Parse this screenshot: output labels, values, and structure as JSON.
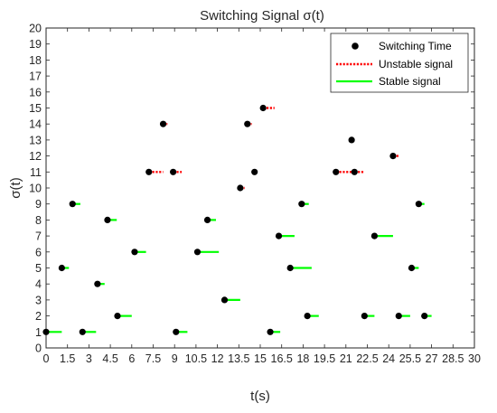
{
  "chart_data": {
    "type": "scatter",
    "title": "Switching Signal σ(t)",
    "xlabel": "t(s)",
    "ylabel": "σ(t)",
    "xlim": [
      0,
      30
    ],
    "ylim": [
      0,
      20
    ],
    "xticks": [
      "0",
      "1.5",
      "3",
      "4.5",
      "6",
      "7.5",
      "9",
      "10.5",
      "12",
      "13.5",
      "15",
      "16.5",
      "18",
      "19.5",
      "21",
      "22.5",
      "24",
      "25.5",
      "27",
      "28.5",
      "30"
    ],
    "yticks": [
      "0",
      "1",
      "2",
      "3",
      "4",
      "5",
      "6",
      "7",
      "8",
      "9",
      "10",
      "11",
      "12",
      "13",
      "14",
      "15",
      "16",
      "17",
      "18",
      "19",
      "20"
    ],
    "grid": false,
    "legend_position": "top-right",
    "colors": {
      "switching": "#000000",
      "unstable": "#ff0000",
      "stable": "#00ff00"
    },
    "legend": [
      {
        "name": "Switching Time",
        "style": "marker"
      },
      {
        "name": "Unstable signal",
        "style": "dotted"
      },
      {
        "name": "Stable signal",
        "style": "solid"
      }
    ],
    "series": [
      {
        "name": "Switching Time",
        "points": [
          [
            0,
            1
          ],
          [
            1.1,
            5
          ],
          [
            1.85,
            9
          ],
          [
            2.55,
            1
          ],
          [
            3.6,
            4
          ],
          [
            4.3,
            8
          ],
          [
            5,
            2
          ],
          [
            6.2,
            6
          ],
          [
            7.2,
            11
          ],
          [
            8.2,
            14
          ],
          [
            8.9,
            11
          ],
          [
            9.1,
            1
          ],
          [
            10.6,
            6
          ],
          [
            11.3,
            8
          ],
          [
            12.5,
            3
          ],
          [
            13.6,
            10
          ],
          [
            14.1,
            14
          ],
          [
            14.6,
            11
          ],
          [
            15.2,
            15
          ],
          [
            15.7,
            1
          ],
          [
            16.3,
            7
          ],
          [
            17.1,
            5
          ],
          [
            17.9,
            9
          ],
          [
            18.3,
            2
          ],
          [
            20.3,
            11
          ],
          [
            21.4,
            13
          ],
          [
            21.6,
            11
          ],
          [
            22.3,
            2
          ],
          [
            23,
            7
          ],
          [
            24.3,
            12
          ],
          [
            24.7,
            2
          ],
          [
            25.6,
            5
          ],
          [
            26.1,
            9
          ],
          [
            26.5,
            2
          ]
        ]
      },
      {
        "name": "Unstable signal",
        "segments": [
          [
            7.2,
            8.2,
            11
          ],
          [
            8.2,
            8.5,
            14
          ],
          [
            8.9,
            9.5,
            11
          ],
          [
            13.6,
            13.9,
            10
          ],
          [
            14.1,
            14.4,
            14
          ],
          [
            14.6,
            14.8,
            11
          ],
          [
            15.2,
            16,
            15
          ],
          [
            20.3,
            21.6,
            11
          ],
          [
            21.4,
            21.5,
            13
          ],
          [
            21.6,
            22.3,
            11
          ],
          [
            24.3,
            24.7,
            12
          ]
        ]
      },
      {
        "name": "Stable signal",
        "segments": [
          [
            0,
            1.1,
            1
          ],
          [
            1.1,
            1.6,
            5
          ],
          [
            1.85,
            2.4,
            9
          ],
          [
            2.55,
            3.5,
            1
          ],
          [
            3.6,
            4.1,
            4
          ],
          [
            4.3,
            4.95,
            8
          ],
          [
            5,
            6,
            2
          ],
          [
            6.2,
            7,
            6
          ],
          [
            9.1,
            9.9,
            1
          ],
          [
            10.6,
            12.1,
            6
          ],
          [
            11.3,
            11.9,
            8
          ],
          [
            12.5,
            13.6,
            3
          ],
          [
            15.7,
            16.4,
            1
          ],
          [
            16.3,
            17.4,
            7
          ],
          [
            17.1,
            18.6,
            5
          ],
          [
            17.9,
            18.4,
            9
          ],
          [
            18.3,
            19.1,
            2
          ],
          [
            22.3,
            23,
            2
          ],
          [
            23,
            24.3,
            7
          ],
          [
            24.7,
            25.5,
            2
          ],
          [
            25.6,
            26.1,
            5
          ],
          [
            26.1,
            26.5,
            9
          ],
          [
            26.5,
            27,
            2
          ]
        ]
      }
    ]
  }
}
